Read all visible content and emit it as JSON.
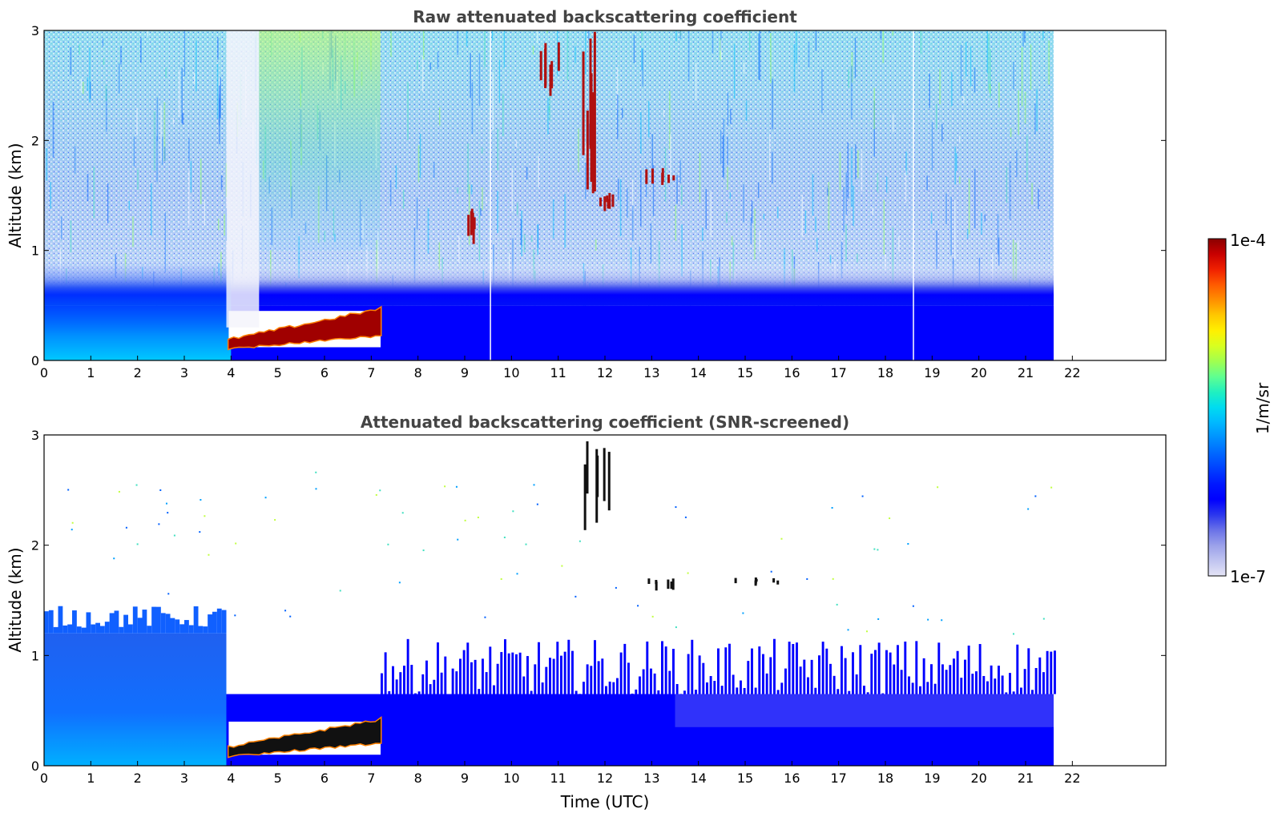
{
  "chart_data": [
    {
      "type": "heatmap",
      "title": "Raw attenuated backscattering coefficient",
      "xlabel": "",
      "ylabel": "Altitude (km)",
      "xlim": [
        0,
        24
      ],
      "ylim": [
        0,
        3
      ],
      "x_ticks": [
        "0",
        "1",
        "2",
        "3",
        "4",
        "5",
        "6",
        "7",
        "8",
        "9",
        "10",
        "11",
        "12",
        "13",
        "14",
        "15",
        "16",
        "17",
        "18",
        "19",
        "20",
        "21",
        "22"
      ],
      "y_ticks": [
        "0",
        "1",
        "2",
        "3"
      ],
      "data_end_time": 21.6,
      "features": [
        {
          "kind": "noise-floor",
          "x_start": 0,
          "x_end": 21.6,
          "y_top": 0.5,
          "value": "1e-6"
        },
        {
          "kind": "aerosol-layer",
          "x_start": 0,
          "x_end": 4.0,
          "y_top": 0.9,
          "value": "5e-6"
        },
        {
          "kind": "cloud-layer",
          "x_start": 3.95,
          "x_end": 7.2,
          "y_start": 0.12,
          "y_end": 0.45,
          "value": "1e-4"
        },
        {
          "kind": "clear-column",
          "x_start": 3.9,
          "x_end": 4.6,
          "y_start": 0.3,
          "y_end": 3.0,
          "value": "1e-7"
        },
        {
          "kind": "high-noise",
          "x_start": 4.6,
          "x_end": 7.2,
          "y_start": 1.0,
          "y_end": 3.0,
          "value": "2e-5"
        },
        {
          "kind": "cloud-streak",
          "x_start": 11.5,
          "x_end": 11.8,
          "y_start": 1.5,
          "y_end": 3.0,
          "value": "8e-5"
        },
        {
          "kind": "cloud-patch",
          "x_start": 11.85,
          "x_end": 12.2,
          "y_start": 1.35,
          "y_end": 1.55,
          "value": "8e-5"
        },
        {
          "kind": "cloud-patch",
          "x_start": 10.6,
          "x_end": 11.1,
          "y_start": 2.4,
          "y_end": 2.9,
          "value": "8e-5"
        },
        {
          "kind": "cloud-patch",
          "x_start": 12.8,
          "x_end": 13.5,
          "y_start": 1.55,
          "y_end": 1.75,
          "value": "8e-5"
        },
        {
          "kind": "cloud-patch",
          "x_start": 9.0,
          "x_end": 9.2,
          "y_start": 1.05,
          "y_end": 1.4,
          "value": "8e-5"
        },
        {
          "kind": "gap-line",
          "x": 9.55
        },
        {
          "kind": "gap-line",
          "x": 18.6
        }
      ]
    },
    {
      "type": "heatmap",
      "title": "Attenuated backscattering coefficient (SNR-screened)",
      "xlabel": "Time (UTC)",
      "ylabel": "Altitude (km)",
      "xlim": [
        0,
        24
      ],
      "ylim": [
        0,
        3
      ],
      "x_ticks": [
        "0",
        "1",
        "2",
        "3",
        "4",
        "5",
        "6",
        "7",
        "8",
        "9",
        "10",
        "11",
        "12",
        "13",
        "14",
        "15",
        "16",
        "17",
        "18",
        "19",
        "20",
        "21",
        "22"
      ],
      "y_ticks": [
        "0",
        "1",
        "2",
        "3"
      ],
      "data_end_time": 21.6,
      "features": [
        {
          "kind": "boundary-layer",
          "x_start": 0,
          "x_end": 21.6,
          "y_top": 0.65,
          "value": "1e-6"
        },
        {
          "kind": "aerosol-layer",
          "x_start": 0,
          "x_end": 3.9,
          "y_top": 1.2,
          "value": "6e-6"
        },
        {
          "kind": "cloud-layer",
          "x_start": 3.95,
          "x_end": 7.2,
          "y_start": 0.1,
          "y_end": 0.4,
          "value": "saturated"
        },
        {
          "kind": "cloud-patch",
          "x_start": 11.5,
          "x_end": 12.1,
          "y_start": 2.1,
          "y_end": 2.95,
          "value": "saturated"
        },
        {
          "kind": "cloud-patch",
          "x_start": 12.8,
          "x_end": 13.5,
          "y_start": 1.58,
          "y_end": 1.72,
          "value": "saturated"
        },
        {
          "kind": "cloud-patch",
          "x_start": 14.7,
          "x_end": 15.7,
          "y_start": 1.62,
          "y_end": 1.72,
          "value": "saturated"
        }
      ]
    }
  ],
  "colorbar": {
    "min_label": "1e-7",
    "max_label": "1e-4",
    "unit_label": "1/m/sr",
    "colors": [
      "#e4e4f6",
      "#c0c4f0",
      "#9aa0ea",
      "#6a72e8",
      "#2a36ee",
      "#0000ff",
      "#0018ff",
      "#0040ff",
      "#0068ff",
      "#0090ff",
      "#00b8ff",
      "#00dcf0",
      "#20f0c0",
      "#60ff90",
      "#a0ff50",
      "#d8ff20",
      "#fff000",
      "#ffc800",
      "#ff9000",
      "#ff5a00",
      "#f02000",
      "#c80000",
      "#8a0000"
    ]
  }
}
